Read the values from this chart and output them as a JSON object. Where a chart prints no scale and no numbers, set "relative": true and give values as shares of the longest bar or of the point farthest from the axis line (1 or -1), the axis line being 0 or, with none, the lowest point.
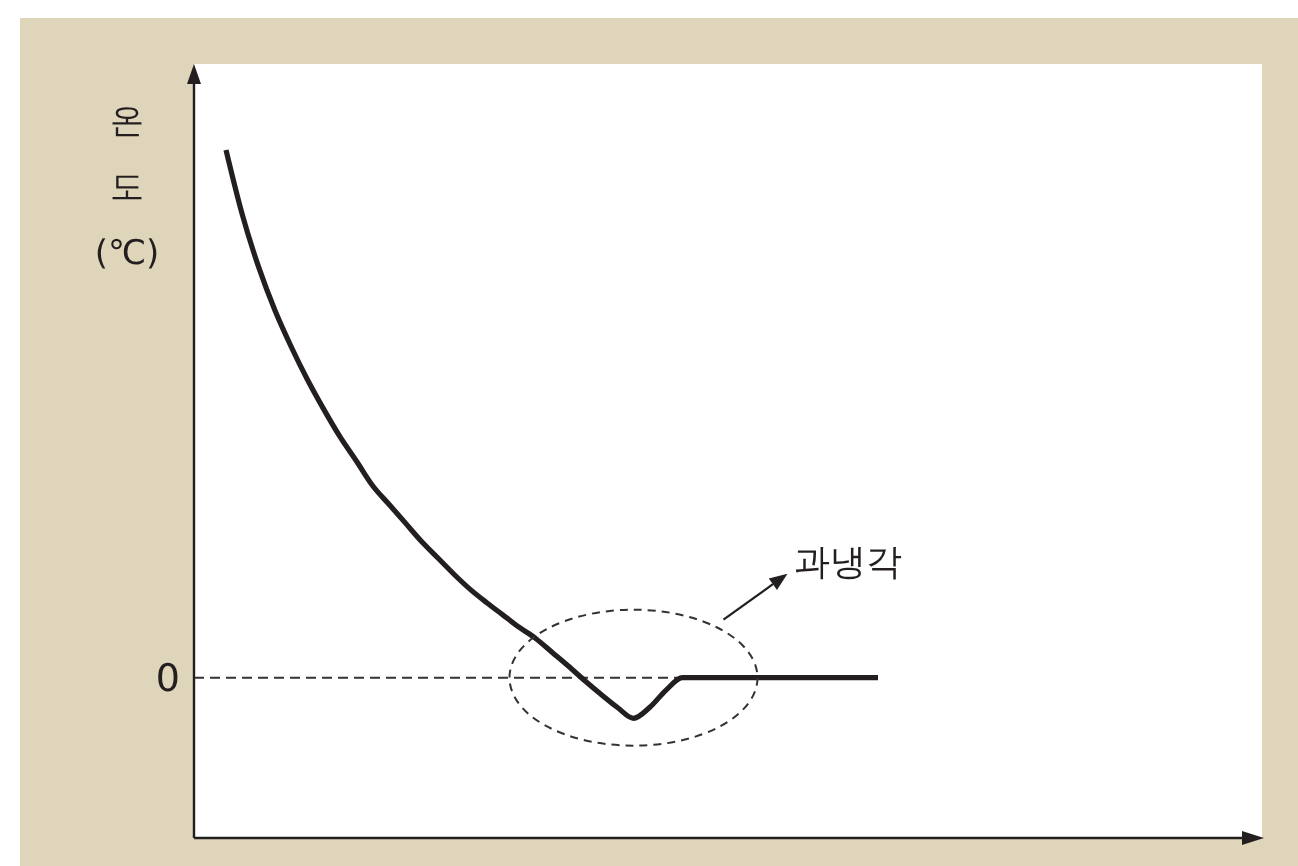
{
  "chart_data": {
    "type": "line",
    "ylabel": "온도(℃)",
    "relative": true,
    "categories": [
      null,
      null,
      null,
      null,
      null,
      null,
      null,
      null,
      null,
      null,
      null,
      null,
      null,
      null,
      null,
      null,
      null,
      null,
      null,
      null,
      null,
      null,
      null,
      null,
      null,
      null,
      null,
      null,
      null,
      null,
      null,
      null,
      null,
      null,
      null,
      null,
      null,
      null,
      null,
      null,
      null
    ],
    "series": [
      {
        "color": "#231f20",
        "values": [
          1,
          0.906,
          0.83,
          0.767,
          0.714,
          0.666,
          0.623,
          0.583,
          0.548,
          0.512,
          0.485,
          0.458,
          0.431,
          0.407,
          0.383,
          0.361,
          0.342,
          0.324,
          0.306,
          0.29,
          0.27,
          0.25,
          0.229,
          0.209,
          0.19,
          0.174,
          0.19,
          0.215,
          0.233,
          0.233,
          0.233,
          0.233,
          0.233,
          0.233,
          0.233,
          0.233,
          0.233,
          0.233,
          0.233,
          0.233,
          0.233
        ]
      }
    ],
    "ref_lines": [
      {
        "axis": "y",
        "value": 0.233,
        "label": "0",
        "line_style": "dashed"
      }
    ],
    "annotations": [
      "과냉각"
    ]
  }
}
